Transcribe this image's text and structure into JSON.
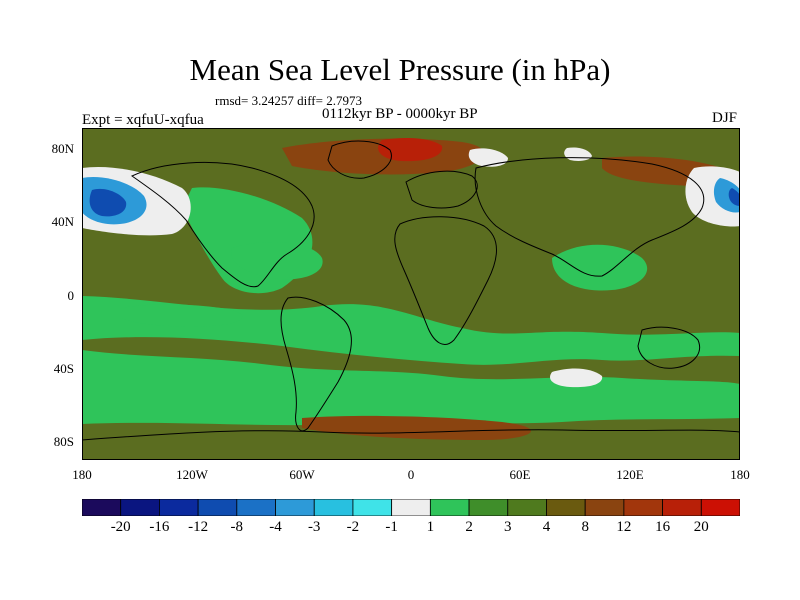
{
  "title": "Mean Sea Level Pressure (in hPa)",
  "stats": "rmsd= 3.24257 diff= 2.7973",
  "period": "0112kyr BP - 0000kyr BP",
  "experiment": "Expt = xqfuU-xqfua",
  "season": "DJF",
  "lat_labels": [
    "80N",
    "40N",
    "0",
    "40S",
    "80S"
  ],
  "lon_labels": [
    "180",
    "120W",
    "60W",
    "0",
    "60E",
    "120E",
    "180"
  ],
  "colorbar": {
    "labels": [
      "-20",
      "-16",
      "-12",
      "-8",
      "-4",
      "-3",
      "-2",
      "-1",
      "1",
      "2",
      "3",
      "4",
      "8",
      "12",
      "16",
      "20"
    ],
    "colors": [
      "#1b0a5c",
      "#0a1580",
      "#0b2a9e",
      "#0f4cb0",
      "#1b71c6",
      "#2d9ad8",
      "#28c0e0",
      "#3fe3e8",
      "#eeeeee",
      "#2fc45a",
      "#3f8e2a",
      "#4f7a1e",
      "#6a5a0f",
      "#8a4410",
      "#a2360c",
      "#b82008",
      "#cc1004"
    ]
  },
  "palette": {
    "dominant_land_ocean": "#5b6d20",
    "band_green": "#2fc45a",
    "warm_patch": "#8a4410",
    "strong_warm": "#b82008",
    "near_zero": "#eeeeee",
    "cool": "#2d9ad8",
    "strong_cool": "#0f4cb0"
  }
}
